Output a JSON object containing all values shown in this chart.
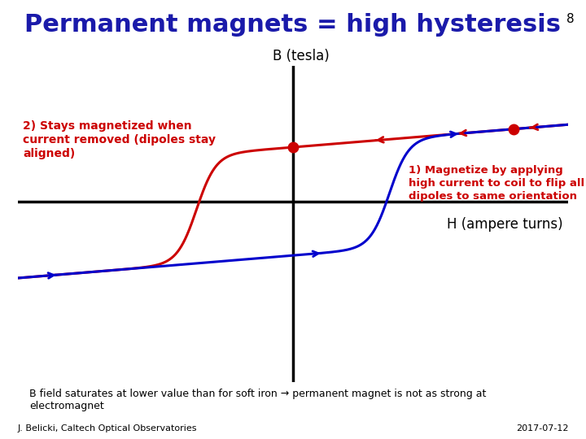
{
  "title": "Permanent magnets = high hysteresis",
  "title_color": "#1a1aaa",
  "title_fontsize": 22,
  "bg_color": "#ffffff",
  "slide_number": "8",
  "xlabel": "H (ampere turns)",
  "ylabel": "B (tesla)",
  "annotation1": "2) Stays magnetized when\ncurrent removed (dipoles stay\naligned)",
  "annotation1_color": "#cc0000",
  "annotation2": "1) Magnetize by applying\nhigh current to coil to flip all\ndipoles to same orientation",
  "annotation2_color": "#cc0000",
  "footer_left": "J. Belicki, Caltech Optical Observatories",
  "footer_right": "2017-07-12",
  "bottom_note": "B field saturates at lower value than for soft iron → permanent magnet is not as strong at\nelectromagnet",
  "red_curve_color": "#cc0000",
  "blue_curve_color": "#0000cc"
}
